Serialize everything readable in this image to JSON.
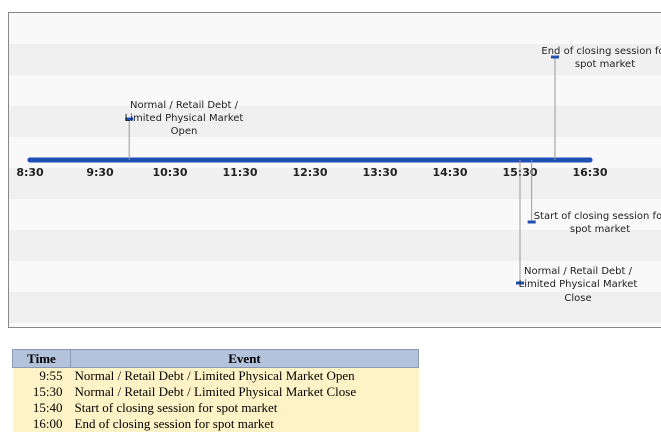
{
  "timeline": {
    "ticks": [
      "8:30",
      "9:30",
      "10:30",
      "11:30",
      "12:30",
      "13:30",
      "14:30",
      "15:30",
      "16:30"
    ],
    "events": [
      {
        "time": "9:55",
        "lines": [
          "Normal / Retail Debt /",
          "Limited Physical Market",
          "Open"
        ]
      },
      {
        "time": "15:30",
        "lines": [
          "Normal / Retail Debt /",
          "Limited Physical Market",
          "Close"
        ]
      },
      {
        "time": "15:40",
        "lines": [
          "Start of closing session for",
          "spot market"
        ]
      },
      {
        "time": "16:00",
        "lines": [
          "End of closing session for",
          "spot market"
        ]
      }
    ]
  },
  "table": {
    "header": [
      "Time",
      "Event"
    ],
    "rows": [
      [
        "9:55",
        "Normal / Retail Debt / Limited Physical Market Open"
      ],
      [
        "15:30",
        "Normal / Retail Debt / Limited Physical Market Close"
      ],
      [
        "15:40",
        "Start of closing session for spot market"
      ],
      [
        "16:00",
        "End of closing session for spot market"
      ]
    ]
  }
}
